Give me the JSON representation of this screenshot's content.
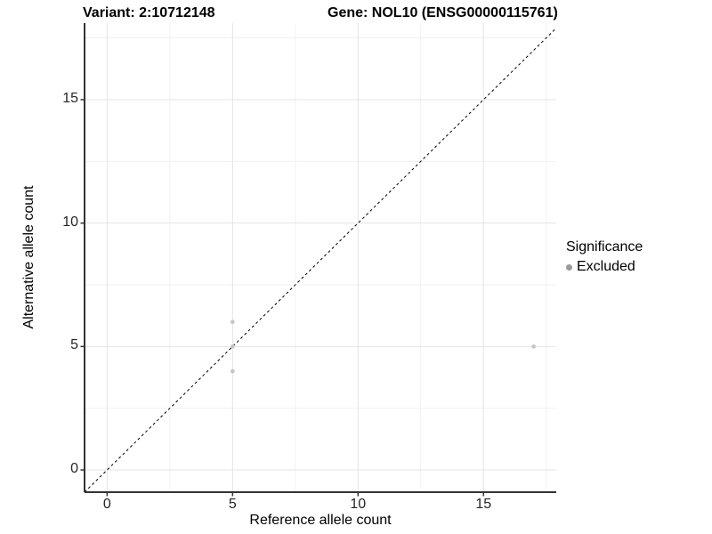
{
  "header": {
    "variant_title": "Variant: 2:10712148",
    "gene_title": "Gene: NOL10 (ENSG00000115761)"
  },
  "chart_data": {
    "type": "scatter",
    "xlabel": "Reference allele count",
    "ylabel": "Alternative allele count",
    "xlim": [
      -0.9,
      17.9
    ],
    "ylim": [
      -0.9,
      18.1
    ],
    "xticks": [
      0,
      5,
      10,
      15
    ],
    "yticks": [
      0,
      5,
      10,
      15
    ],
    "xticks_minor": [
      2.5,
      7.5,
      12.5,
      17.5
    ],
    "yticks_minor": [
      2.5,
      7.5,
      12.5,
      17.5
    ],
    "grid": "major and minor gridlines on white panel",
    "series": [
      {
        "name": "Excluded",
        "point_color": "#c4c4c4",
        "point_radius": 2.3,
        "points": [
          {
            "x": 5,
            "y": 4
          },
          {
            "x": 5,
            "y": 5
          },
          {
            "x": 5,
            "y": 6
          },
          {
            "x": 17,
            "y": 5
          }
        ]
      }
    ],
    "identity_line": {
      "style": "dashed",
      "color": "#000000",
      "dash": [
        3,
        3
      ],
      "width": 1
    },
    "legend": {
      "position": "right",
      "title": "Significance",
      "entries": [
        {
          "label": "Excluded",
          "key_color": "#9a9a9a"
        }
      ]
    }
  },
  "style_colors": {
    "grid_major": "#e4e4e4",
    "grid_minor": "#f1f1f1",
    "axis_line": "#333333",
    "tick_mark": "#333333",
    "tick_label": "#262626"
  }
}
